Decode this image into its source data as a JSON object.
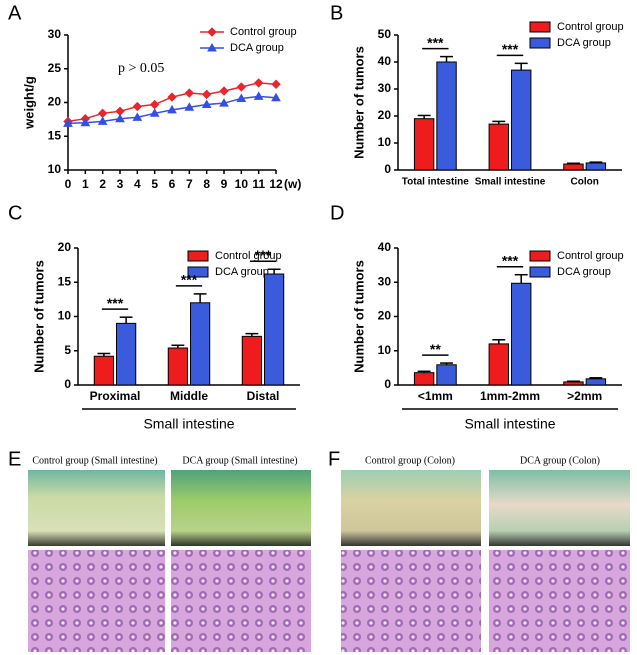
{
  "chart_data": [
    {
      "type": "line",
      "panel": "A",
      "ylabel": "weight/g",
      "xlabel": "(w)",
      "annotation": "p > 0.05",
      "x": [
        0,
        1,
        2,
        3,
        4,
        5,
        6,
        7,
        8,
        9,
        10,
        11,
        12
      ],
      "xlim": [
        0,
        12
      ],
      "xticks": [
        0,
        1,
        2,
        3,
        4,
        5,
        6,
        7,
        8,
        9,
        10,
        11,
        12
      ],
      "ylim": [
        10,
        30
      ],
      "yticks": [
        10,
        15,
        20,
        25,
        30
      ],
      "legend": "upper right",
      "series": [
        {
          "name": "Control group",
          "color": "#e8262d",
          "marker": "diamond",
          "values": [
            17.2,
            17.6,
            18.4,
            18.7,
            19.4,
            19.7,
            20.8,
            21.4,
            21.2,
            21.7,
            22.3,
            22.9,
            22.7
          ]
        },
        {
          "name": "DCA group",
          "color": "#3550e0",
          "marker": "triangle",
          "values": [
            16.9,
            17.0,
            17.2,
            17.6,
            17.8,
            18.4,
            18.9,
            19.3,
            19.7,
            19.9,
            20.6,
            20.9,
            20.7
          ]
        }
      ]
    },
    {
      "type": "bar",
      "panel": "B",
      "ylabel": "Number of tumors",
      "categories": [
        "Total intestine",
        "Small intestine",
        "Colon"
      ],
      "ylim": [
        0,
        50
      ],
      "yticks": [
        0,
        10,
        20,
        30,
        40,
        50
      ],
      "legend": "upper right",
      "series": [
        {
          "name": "Control  group",
          "color": "#ee1c1c",
          "values": [
            19,
            17,
            2.2
          ],
          "errors": [
            1.2,
            1,
            0.3
          ]
        },
        {
          "name": "DCA group",
          "color": "#3a5bdb",
          "values": [
            40,
            37,
            2.6
          ],
          "errors": [
            2,
            2.5,
            0.3
          ]
        }
      ],
      "significance": [
        {
          "category": "Total intestine",
          "label": "***"
        },
        {
          "category": "Small intestine",
          "label": "***"
        }
      ]
    },
    {
      "type": "bar",
      "panel": "C",
      "ylabel": "Number of tumors",
      "xlabel": "Small intestine",
      "categories": [
        "Proximal",
        "Middle",
        "Distal"
      ],
      "ylim": [
        0,
        20
      ],
      "yticks": [
        0,
        5,
        10,
        15,
        20
      ],
      "legend": "upper right",
      "series": [
        {
          "name": "Control  group",
          "color": "#ee1c1c",
          "values": [
            4.2,
            5.4,
            7.1
          ],
          "errors": [
            0.4,
            0.4,
            0.4
          ]
        },
        {
          "name": "DCA group",
          "color": "#3a5bdb",
          "values": [
            9,
            12,
            16.2
          ],
          "errors": [
            0.9,
            1.3,
            0.7
          ]
        }
      ],
      "significance": [
        {
          "category": "Proximal",
          "label": "***"
        },
        {
          "category": "Middle",
          "label": "***"
        },
        {
          "category": "Distal",
          "label": "***"
        }
      ]
    },
    {
      "type": "bar",
      "panel": "D",
      "ylabel": "Number of tumors",
      "xlabel": "Small intestine",
      "categories": [
        "<1mm",
        "1mm-2mm",
        ">2mm"
      ],
      "ylim": [
        0,
        40
      ],
      "yticks": [
        0,
        10,
        20,
        30,
        40
      ],
      "legend": "upper right",
      "series": [
        {
          "name": "Control  group",
          "color": "#ee1c1c",
          "values": [
            3.6,
            12,
            0.9
          ],
          "errors": [
            0.4,
            1.2,
            0.2
          ]
        },
        {
          "name": "DCA group",
          "color": "#3a5bdb",
          "values": [
            5.9,
            29.7,
            1.8
          ],
          "errors": [
            0.5,
            2.5,
            0.3
          ]
        }
      ],
      "significance": [
        {
          "category": "<1mm",
          "label": "**"
        },
        {
          "category": "1mm-2mm",
          "label": "***"
        }
      ]
    }
  ],
  "photo_panels": [
    {
      "panel": "E",
      "captions": [
        "Control group (Small intestine)",
        "DCA group (Small intestine)"
      ]
    },
    {
      "panel": "F",
      "captions": [
        "Control group (Colon)",
        "DCA group (Colon)"
      ]
    }
  ]
}
